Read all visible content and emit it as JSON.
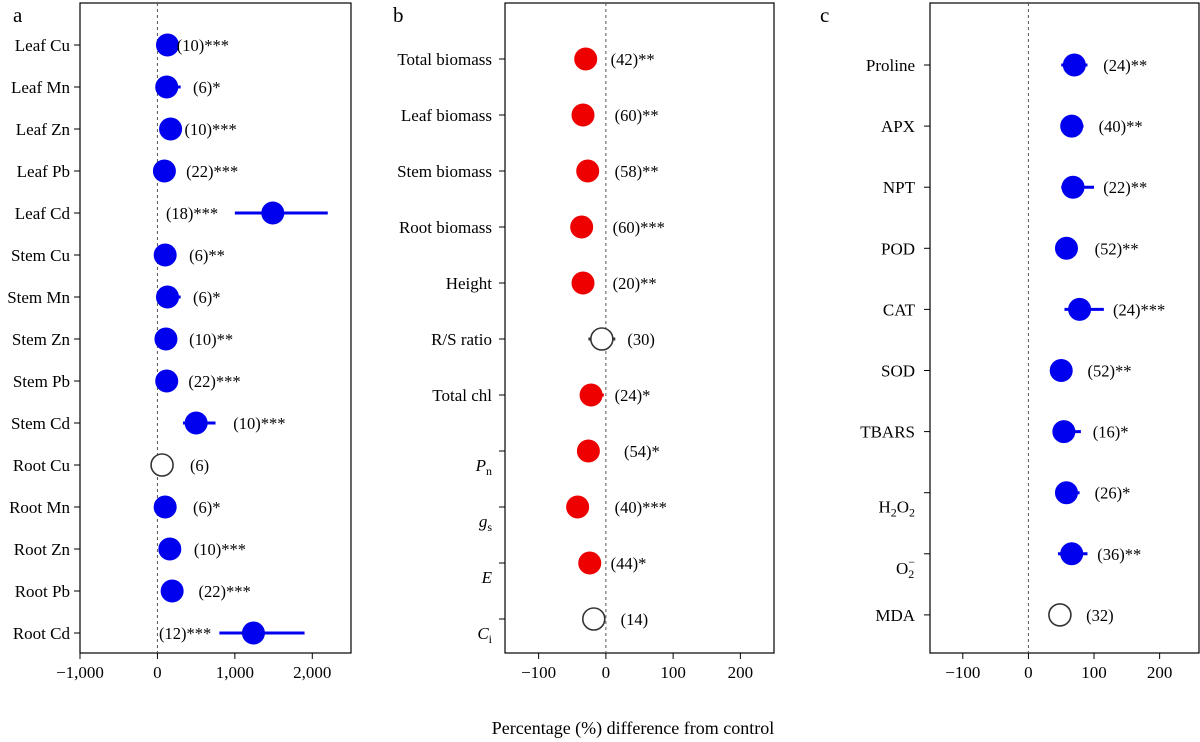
{
  "figure": {
    "xlabel": "Percentage (%) difference from control"
  },
  "colors": {
    "blue": "#0000ee",
    "red": "#ee0000",
    "open": "#ffffff",
    "open_stroke": "#333333"
  },
  "chart_data": [
    {
      "panel": "a",
      "type": "scatter",
      "xlim": [
        -1000,
        2500
      ],
      "xticks": [
        -1000,
        0,
        1000,
        2000
      ],
      "xtick_labels": [
        "−1,000",
        "0",
        "1,000",
        "2,000"
      ],
      "categories": [
        "Leaf Cu",
        "Leaf Mn",
        "Leaf Zn",
        "Leaf Pb",
        "Leaf Cd",
        "Stem Cu",
        "Stem Mn",
        "Stem Zn",
        "Stem Pb",
        "Stem Cd",
        "Root Cu",
        "Root Mn",
        "Root Zn",
        "Root Pb",
        "Root Cd"
      ],
      "points": [
        {
          "label": "Leaf Cu",
          "x": 130,
          "lo": 80,
          "hi": 180,
          "ann": "(10)***",
          "ann_x": 250,
          "fill": "blue"
        },
        {
          "label": "Leaf Mn",
          "x": 120,
          "lo": 40,
          "hi": 300,
          "ann": "(6)*",
          "ann_x": 460,
          "fill": "blue"
        },
        {
          "label": "Leaf Zn",
          "x": 170,
          "lo": 110,
          "hi": 230,
          "ann": "(10)***",
          "ann_x": 350,
          "fill": "blue"
        },
        {
          "label": "Leaf Pb",
          "x": 90,
          "lo": 40,
          "hi": 140,
          "ann": "(22)***",
          "ann_x": 370,
          "fill": "blue"
        },
        {
          "label": "Leaf Cd",
          "x": 1490,
          "lo": 1000,
          "hi": 2200,
          "ann": "(18)***",
          "ann_x": 110,
          "fill": "blue"
        },
        {
          "label": "Stem Cu",
          "x": 100,
          "lo": 50,
          "hi": 150,
          "ann": "(6)**",
          "ann_x": 410,
          "fill": "blue"
        },
        {
          "label": "Stem Mn",
          "x": 130,
          "lo": 50,
          "hi": 300,
          "ann": "(6)*",
          "ann_x": 460,
          "fill": "blue"
        },
        {
          "label": "Stem Zn",
          "x": 110,
          "lo": 60,
          "hi": 160,
          "ann": "(10)**",
          "ann_x": 410,
          "fill": "blue"
        },
        {
          "label": "Stem Pb",
          "x": 120,
          "lo": 70,
          "hi": 170,
          "ann": "(22)***",
          "ann_x": 400,
          "fill": "blue"
        },
        {
          "label": "Stem Cd",
          "x": 500,
          "lo": 330,
          "hi": 750,
          "ann": "(10)***",
          "ann_x": 980,
          "fill": "blue"
        },
        {
          "label": "Root Cu",
          "x": 60,
          "lo": 30,
          "hi": 90,
          "ann": "(6)",
          "ann_x": 420,
          "fill": "open"
        },
        {
          "label": "Root Mn",
          "x": 100,
          "lo": 50,
          "hi": 150,
          "ann": "(6)*",
          "ann_x": 460,
          "fill": "blue"
        },
        {
          "label": "Root Zn",
          "x": 160,
          "lo": 100,
          "hi": 220,
          "ann": "(10)***",
          "ann_x": 470,
          "fill": "blue"
        },
        {
          "label": "Root Pb",
          "x": 190,
          "lo": 130,
          "hi": 250,
          "ann": "(22)***",
          "ann_x": 530,
          "fill": "blue"
        },
        {
          "label": "Root Cd",
          "x": 1240,
          "lo": 800,
          "hi": 1900,
          "ann": "(12)***",
          "ann_x": 20,
          "fill": "blue"
        }
      ]
    },
    {
      "panel": "b",
      "type": "scatter",
      "xlim": [
        -150,
        250
      ],
      "xticks": [
        -100,
        0,
        100,
        200
      ],
      "xtick_labels": [
        "−100",
        "0",
        "100",
        "200"
      ],
      "categories": [
        "Total biomass",
        "Leaf biomass",
        "Stem biomass",
        "Root biomass",
        "Height",
        "R/S ratio",
        "Total chl",
        "Pn",
        "gs",
        "E",
        "Ci"
      ],
      "points": [
        {
          "label": "Total biomass",
          "x": -30,
          "lo": -36,
          "hi": -24,
          "ann": "(42)**",
          "ann_x": 7,
          "fill": "red"
        },
        {
          "label": "Leaf biomass",
          "x": -34,
          "lo": -40,
          "hi": -28,
          "ann": "(60)**",
          "ann_x": 13,
          "fill": "red"
        },
        {
          "label": "Stem biomass",
          "x": -27,
          "lo": -33,
          "hi": -21,
          "ann": "(58)**",
          "ann_x": 13,
          "fill": "red"
        },
        {
          "label": "Root biomass",
          "x": -36,
          "lo": -42,
          "hi": -30,
          "ann": "(60)***",
          "ann_x": 10,
          "fill": "red"
        },
        {
          "label": "Height",
          "x": -34,
          "lo": -40,
          "hi": -22,
          "ann": "(20)**",
          "ann_x": 10,
          "fill": "red"
        },
        {
          "label": "R/S ratio",
          "x": -6,
          "lo": -26,
          "hi": 14,
          "ann": "(30)",
          "ann_x": 32,
          "fill": "open"
        },
        {
          "label": "Total chl",
          "x": -22,
          "lo": -30,
          "hi": -3,
          "ann": "(24)*",
          "ann_x": 13,
          "fill": "red"
        },
        {
          "label": "Pn",
          "label_main": "P",
          "label_sub": "n",
          "x": -26,
          "lo": -32,
          "hi": -20,
          "ann": "(54)*",
          "ann_x": 27,
          "fill": "red"
        },
        {
          "label": "gs",
          "label_main": "g",
          "label_sub": "s",
          "x": -42,
          "lo": -48,
          "hi": -36,
          "ann": "(40)***",
          "ann_x": 13,
          "fill": "red"
        },
        {
          "label": "E",
          "label_main": "E",
          "label_sub": "",
          "x": -24,
          "lo": -30,
          "hi": -18,
          "ann": "(44)*",
          "ann_x": 7,
          "fill": "red"
        },
        {
          "label": "Ci",
          "label_main": "C",
          "label_sub": "i",
          "x": -18,
          "lo": -32,
          "hi": -2,
          "ann": "(14)",
          "ann_x": 22,
          "fill": "open"
        }
      ]
    },
    {
      "panel": "c",
      "type": "scatter",
      "xlim": [
        -150,
        260
      ],
      "xticks": [
        -100,
        0,
        100,
        200
      ],
      "xtick_labels": [
        "−100",
        "0",
        "100",
        "200"
      ],
      "categories": [
        "Proline",
        "APX",
        "NPT",
        "POD",
        "CAT",
        "SOD",
        "TBARS",
        "H2O2",
        "O2-",
        "MDA"
      ],
      "points": [
        {
          "label": "Proline",
          "x": 70,
          "lo": 50,
          "hi": 90,
          "ann": "(24)**",
          "ann_x": 114,
          "fill": "blue"
        },
        {
          "label": "APX",
          "x": 66,
          "lo": 50,
          "hi": 84,
          "ann": "(40)**",
          "ann_x": 107,
          "fill": "blue"
        },
        {
          "label": "NPT",
          "x": 68,
          "lo": 50,
          "hi": 100,
          "ann": "(22)**",
          "ann_x": 114,
          "fill": "blue"
        },
        {
          "label": "POD",
          "x": 58,
          "lo": 42,
          "hi": 74,
          "ann": "(52)**",
          "ann_x": 101,
          "fill": "blue"
        },
        {
          "label": "CAT",
          "x": 78,
          "lo": 55,
          "hi": 115,
          "ann": "(24)***",
          "ann_x": 129,
          "fill": "blue"
        },
        {
          "label": "SOD",
          "x": 50,
          "lo": 35,
          "hi": 65,
          "ann": "(52)**",
          "ann_x": 90,
          "fill": "blue"
        },
        {
          "label": "TBARS",
          "x": 54,
          "lo": 38,
          "hi": 80,
          "ann": "(16)*",
          "ann_x": 98,
          "fill": "blue"
        },
        {
          "label": "H2O2",
          "label_main": "H",
          "label_sub": "2",
          "label_main2": "O",
          "label_sub2": "2",
          "x": 58,
          "lo": 42,
          "hi": 78,
          "ann": "(26)*",
          "ann_x": 101,
          "fill": "blue"
        },
        {
          "label": "O2-",
          "label_main": "O",
          "label_sub": "2",
          "label_sup": "−",
          "x": 66,
          "lo": 45,
          "hi": 90,
          "ann": "(36)**",
          "ann_x": 105,
          "fill": "blue"
        },
        {
          "label": "MDA",
          "x": 48,
          "lo": 40,
          "hi": 56,
          "ann": "(32)",
          "ann_x": 88,
          "fill": "open"
        }
      ]
    }
  ]
}
